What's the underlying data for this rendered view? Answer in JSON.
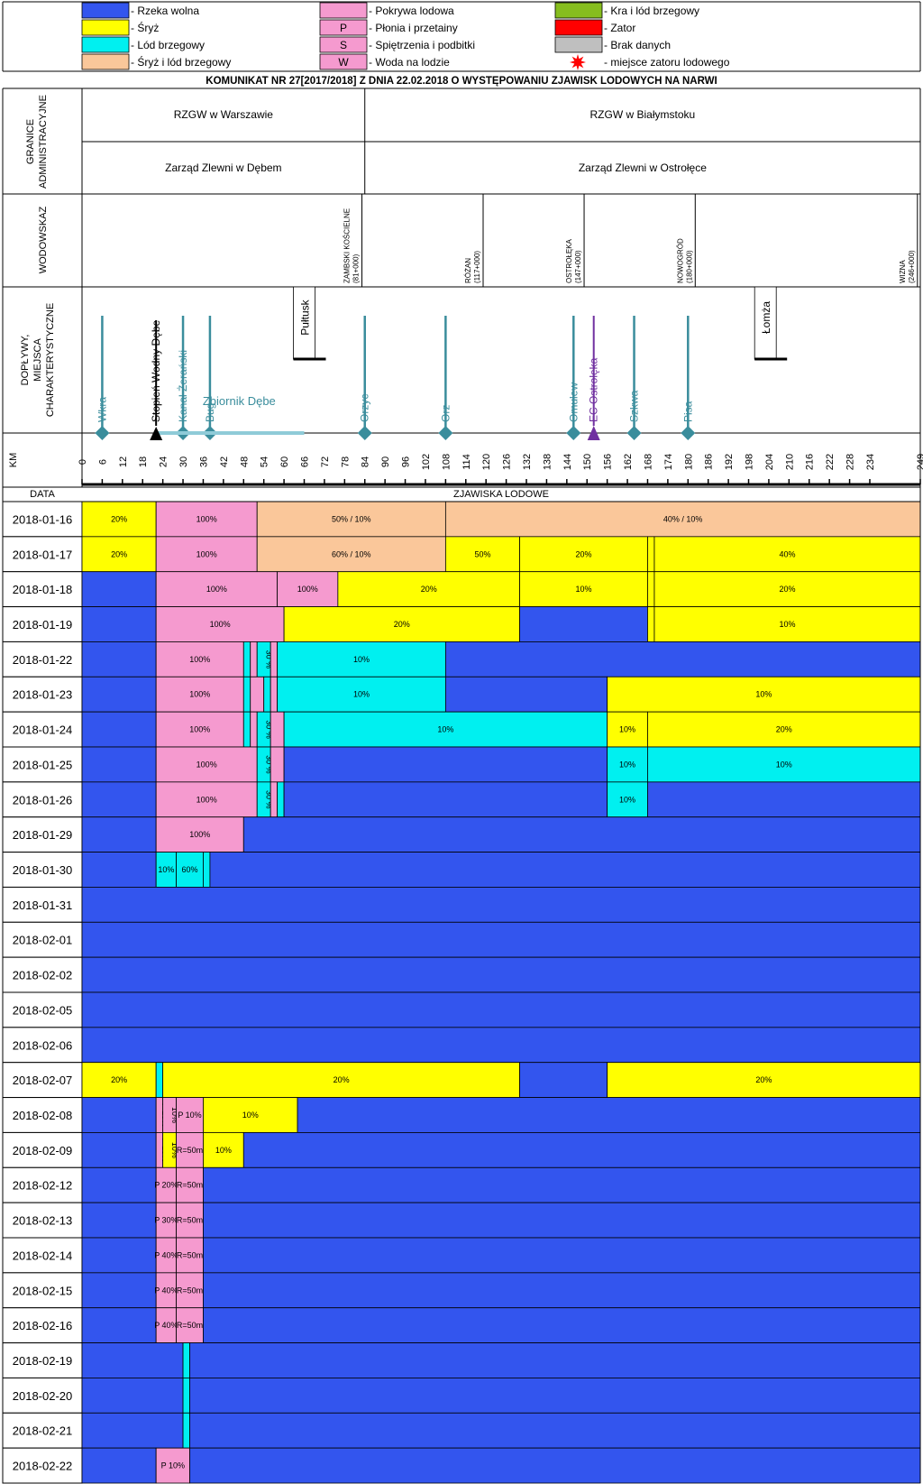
{
  "colors": {
    "free": "#3355ee",
    "sryz": "#ffff00",
    "brzeg": "#00f0f0",
    "sryzbrzeg": "#fac79a",
    "pokrywa": "#f59acf",
    "kra": "#86bd1e",
    "zator": "#ff0000",
    "brak": "#bfbfbf",
    "river_line": "#3a8d9c",
    "ec_line": "#7030a0",
    "reservoir": "#8fcbd8"
  },
  "legend": [
    {
      "key": "free",
      "label": "- Rzeka wolna"
    },
    {
      "key": "sryz",
      "label": "- Śryż"
    },
    {
      "key": "brzeg",
      "label": "- Lód brzegowy"
    },
    {
      "key": "sryzbrzeg",
      "label": "- Śryż i lód brzegowy"
    },
    {
      "key": "pokrywa",
      "label": "- Pokrywa lodowa"
    },
    {
      "key": "pokrywa",
      "sym": "P",
      "label": "- Płonia i przetainy"
    },
    {
      "key": "pokrywa",
      "sym": "S",
      "label": "- Spiętrzenia i podbitki"
    },
    {
      "key": "pokrywa",
      "sym": "W",
      "label": "- Woda na lodzie"
    },
    {
      "key": "kra",
      "label": "- Kra i lód brzegowy"
    },
    {
      "key": "zator",
      "label": "- Zator"
    },
    {
      "key": "brak",
      "label": "- Brak danych"
    },
    {
      "key": "star",
      "label": "- miejsce zatoru lodowego"
    }
  ],
  "title": "KOMUNIKAT NR 27[2017/2018] Z DNIA 22.02.2018 O WYSTĘPOWANIU ZJAWISK LODOWYCH NA NARWI",
  "labels": {
    "granice": [
      "GRANICE",
      "ADMINISTRACYJNE"
    ],
    "wodowskaz": "WODOWSKAZ",
    "doplywy": [
      "DOPŁYWY,",
      "MIEJSCA",
      "CHARAKTERYSTYCZNE"
    ],
    "km": "KM",
    "data": "DATA",
    "zjawiska": "ZJAWISKA LODOWE"
  },
  "admin": {
    "rzgw": [
      {
        "name": "RZGW w Warszawie",
        "from": 0,
        "to": 84
      },
      {
        "name": "RZGW w Białymstoku",
        "from": 84,
        "to": 249
      }
    ],
    "zarzad": [
      {
        "name": "Zarząd Zlewni w Dębem",
        "from": 0,
        "to": 84
      },
      {
        "name": "Zarząd Zlewni w Ostrołęce",
        "from": 84,
        "to": 249
      }
    ]
  },
  "gauges": [
    {
      "name": "ZAMBSKI KOŚCIELNE",
      "km_label": "(81+000)",
      "km": 81
    },
    {
      "name": "RÓŻAN",
      "km_label": "(117+000)",
      "km": 117
    },
    {
      "name": "OSTROŁĘKA",
      "km_label": "(147+000)",
      "km": 147
    },
    {
      "name": "NOWOGRÓD",
      "km_label": "(180+000)",
      "km": 180
    },
    {
      "name": "WIZNA",
      "km_label": "(246+000)",
      "km": 246
    }
  ],
  "tributaries": [
    {
      "name": "Wkra",
      "km": 6,
      "kind": "river"
    },
    {
      "name": "Kanał Żerański",
      "km": 30,
      "kind": "river"
    },
    {
      "name": "Bug",
      "km": 38,
      "kind": "river"
    },
    {
      "name": "Orzyc",
      "km": 84,
      "kind": "river"
    },
    {
      "name": "Orz",
      "km": 108,
      "kind": "river"
    },
    {
      "name": "Omulew",
      "km": 146,
      "kind": "river"
    },
    {
      "name": "Szkwa",
      "km": 164,
      "kind": "river"
    },
    {
      "name": "Pisa",
      "km": 180,
      "kind": "river"
    }
  ],
  "special": {
    "dam": {
      "name": "Stopień Wodny Dębe",
      "km": 22
    },
    "ec": {
      "name": "EC Ostrołęka",
      "km": 152
    },
    "reservoir": {
      "name": "Zbiornik Dębe",
      "from": 22,
      "to": 66
    },
    "towns": [
      {
        "name": "Pułtusk",
        "km": 66
      },
      {
        "name": "Łomża",
        "km": 203
      }
    ]
  },
  "km_ticks": [
    "0",
    "6",
    "12",
    "18",
    "24",
    "30",
    "36",
    "42",
    "48",
    "54",
    "60",
    "66",
    "72",
    "78",
    "84",
    "90",
    "96",
    "102",
    "108",
    "114",
    "120",
    "126",
    "132",
    "138",
    "144",
    "150",
    "156",
    "162",
    "168",
    "174",
    "180",
    "186",
    "192",
    "198",
    "204",
    "210",
    "216",
    "222",
    "228",
    "234",
    "249"
  ],
  "chart_data": {
    "type": "table",
    "title": "KOMUNIKAT NR 27[2017/2018] Z DNIA 22.02.2018 O WYSTĘPOWANIU ZJAWISK LODOWYCH NA NARWI",
    "xlabel": "KM",
    "ylabel": "DATA",
    "xlim": [
      0,
      249
    ],
    "rows": [
      {
        "date": "2018-01-16",
        "segs": [
          [
            0,
            22,
            "sryz",
            "20%"
          ],
          [
            22,
            52,
            "pokrywa",
            "100%"
          ],
          [
            52,
            108,
            "sryzbrzeg",
            "50% / 10%"
          ],
          [
            108,
            249,
            "sryzbrzeg",
            "40% / 10%"
          ]
        ]
      },
      {
        "date": "2018-01-17",
        "segs": [
          [
            0,
            22,
            "sryz",
            "20%"
          ],
          [
            22,
            52,
            "pokrywa",
            "100%"
          ],
          [
            52,
            108,
            "sryzbrzeg",
            "60% / 10%"
          ],
          [
            108,
            130,
            "sryz",
            "50%"
          ],
          [
            130,
            168,
            "sryz",
            "20%"
          ],
          [
            168,
            170,
            "sryz",
            ""
          ],
          [
            170,
            249,
            "sryz",
            "40%"
          ]
        ]
      },
      {
        "date": "2018-01-18",
        "segs": [
          [
            0,
            22,
            "free",
            ""
          ],
          [
            22,
            58,
            "pokrywa",
            "100%"
          ],
          [
            58,
            76,
            "pokrywa",
            "100%"
          ],
          [
            76,
            130,
            "sryz",
            "20%"
          ],
          [
            130,
            168,
            "sryz",
            "10%"
          ],
          [
            168,
            170,
            "sryz",
            ""
          ],
          [
            170,
            249,
            "sryz",
            "20%"
          ]
        ]
      },
      {
        "date": "2018-01-19",
        "segs": [
          [
            0,
            22,
            "free",
            ""
          ],
          [
            22,
            60,
            "pokrywa",
            "100%"
          ],
          [
            60,
            130,
            "sryz",
            "20%"
          ],
          [
            130,
            168,
            "free",
            ""
          ],
          [
            168,
            170,
            "sryz",
            ""
          ],
          [
            170,
            249,
            "sryz",
            "10%"
          ]
        ]
      },
      {
        "date": "2018-01-22",
        "segs": [
          [
            0,
            22,
            "free",
            ""
          ],
          [
            22,
            48,
            "pokrywa",
            "100%"
          ],
          [
            48,
            50,
            "brzeg",
            ""
          ],
          [
            50,
            52,
            "pokrywa",
            ""
          ],
          [
            52,
            56,
            "brzeg",
            "30 %"
          ],
          [
            56,
            58,
            "pokrywa",
            ""
          ],
          [
            58,
            108,
            "brzeg",
            "10%"
          ],
          [
            108,
            249,
            "free",
            ""
          ]
        ]
      },
      {
        "date": "2018-01-23",
        "segs": [
          [
            0,
            22,
            "free",
            ""
          ],
          [
            22,
            48,
            "pokrywa",
            "100%"
          ],
          [
            48,
            50,
            "brzeg",
            ""
          ],
          [
            50,
            54,
            "pokrywa",
            ""
          ],
          [
            54,
            56,
            "brzeg",
            ""
          ],
          [
            56,
            58,
            "pokrywa",
            ""
          ],
          [
            58,
            108,
            "brzeg",
            "10%"
          ],
          [
            108,
            156,
            "free",
            ""
          ],
          [
            156,
            249,
            "sryz",
            "10%"
          ]
        ]
      },
      {
        "date": "2018-01-24",
        "segs": [
          [
            0,
            22,
            "free",
            ""
          ],
          [
            22,
            48,
            "pokrywa",
            "100%"
          ],
          [
            48,
            50,
            "brzeg",
            ""
          ],
          [
            50,
            52,
            "pokrywa",
            ""
          ],
          [
            52,
            56,
            "brzeg",
            "30 %"
          ],
          [
            56,
            60,
            "pokrywa",
            ""
          ],
          [
            60,
            156,
            "brzeg",
            "10%"
          ],
          [
            156,
            168,
            "sryz",
            "10%"
          ],
          [
            168,
            249,
            "sryz",
            "20%"
          ]
        ]
      },
      {
        "date": "2018-01-25",
        "segs": [
          [
            0,
            22,
            "free",
            ""
          ],
          [
            22,
            52,
            "pokrywa",
            "100%"
          ],
          [
            52,
            56,
            "brzeg",
            "30 %"
          ],
          [
            56,
            60,
            "pokrywa",
            ""
          ],
          [
            60,
            156,
            "free",
            ""
          ],
          [
            156,
            168,
            "brzeg",
            "10%"
          ],
          [
            168,
            249,
            "brzeg",
            "10%"
          ]
        ]
      },
      {
        "date": "2018-01-26",
        "segs": [
          [
            0,
            22,
            "free",
            ""
          ],
          [
            22,
            52,
            "pokrywa",
            "100%"
          ],
          [
            52,
            56,
            "brzeg",
            "30 %"
          ],
          [
            56,
            58,
            "pokrywa",
            ""
          ],
          [
            58,
            60,
            "brzeg",
            ""
          ],
          [
            60,
            156,
            "free",
            ""
          ],
          [
            156,
            168,
            "brzeg",
            "10%"
          ],
          [
            168,
            249,
            "free",
            ""
          ]
        ]
      },
      {
        "date": "2018-01-29",
        "segs": [
          [
            0,
            22,
            "free",
            ""
          ],
          [
            22,
            48,
            "pokrywa",
            "100%"
          ],
          [
            48,
            249,
            "free",
            ""
          ]
        ]
      },
      {
        "date": "2018-01-30",
        "segs": [
          [
            0,
            22,
            "free",
            ""
          ],
          [
            22,
            28,
            "brzeg",
            "10%"
          ],
          [
            28,
            36,
            "brzeg",
            "60%"
          ],
          [
            36,
            38,
            "brzeg",
            ""
          ],
          [
            38,
            249,
            "free",
            ""
          ]
        ]
      },
      {
        "date": "2018-01-31",
        "segs": [
          [
            0,
            249,
            "free",
            ""
          ]
        ]
      },
      {
        "date": "2018-02-01",
        "segs": [
          [
            0,
            249,
            "free",
            ""
          ]
        ]
      },
      {
        "date": "2018-02-02",
        "segs": [
          [
            0,
            249,
            "free",
            ""
          ]
        ]
      },
      {
        "date": "2018-02-05",
        "segs": [
          [
            0,
            249,
            "free",
            ""
          ]
        ]
      },
      {
        "date": "2018-02-06",
        "segs": [
          [
            0,
            249,
            "free",
            ""
          ]
        ]
      },
      {
        "date": "2018-02-07",
        "segs": [
          [
            0,
            22,
            "sryz",
            "20%"
          ],
          [
            22,
            24,
            "brzeg",
            ""
          ],
          [
            24,
            130,
            "sryz",
            "20%"
          ],
          [
            130,
            156,
            "free",
            ""
          ],
          [
            156,
            249,
            "sryz",
            "20%"
          ]
        ]
      },
      {
        "date": "2018-02-08",
        "segs": [
          [
            0,
            22,
            "free",
            ""
          ],
          [
            22,
            24,
            "pokrywa",
            "P 10%"
          ],
          [
            24,
            28,
            "pokrywa",
            "10%"
          ],
          [
            28,
            36,
            "pokrywa",
            "P 10%"
          ],
          [
            36,
            64,
            "sryz",
            "10%"
          ],
          [
            64,
            249,
            "free",
            ""
          ]
        ]
      },
      {
        "date": "2018-02-09",
        "segs": [
          [
            0,
            22,
            "free",
            ""
          ],
          [
            22,
            24,
            "pokrywa",
            "P 10%"
          ],
          [
            24,
            28,
            "sryz",
            "10%"
          ],
          [
            28,
            36,
            "pokrywa",
            "R=50m"
          ],
          [
            36,
            48,
            "sryz",
            "10%"
          ],
          [
            48,
            249,
            "free",
            ""
          ]
        ]
      },
      {
        "date": "2018-02-12",
        "segs": [
          [
            0,
            22,
            "free",
            ""
          ],
          [
            22,
            28,
            "pokrywa",
            "P 20%"
          ],
          [
            28,
            36,
            "pokrywa",
            "R=50m"
          ],
          [
            36,
            249,
            "free",
            ""
          ]
        ]
      },
      {
        "date": "2018-02-13",
        "segs": [
          [
            0,
            22,
            "free",
            ""
          ],
          [
            22,
            28,
            "pokrywa",
            "P 30%"
          ],
          [
            28,
            36,
            "pokrywa",
            "R=50m"
          ],
          [
            36,
            249,
            "free",
            ""
          ]
        ]
      },
      {
        "date": "2018-02-14",
        "segs": [
          [
            0,
            22,
            "free",
            ""
          ],
          [
            22,
            28,
            "pokrywa",
            "P 40%"
          ],
          [
            28,
            36,
            "pokrywa",
            "R=50m"
          ],
          [
            36,
            249,
            "free",
            ""
          ]
        ]
      },
      {
        "date": "2018-02-15",
        "segs": [
          [
            0,
            22,
            "free",
            ""
          ],
          [
            22,
            28,
            "pokrywa",
            "P 40%"
          ],
          [
            28,
            36,
            "pokrywa",
            "R=50m"
          ],
          [
            36,
            249,
            "free",
            ""
          ]
        ]
      },
      {
        "date": "2018-02-16",
        "segs": [
          [
            0,
            22,
            "free",
            ""
          ],
          [
            22,
            28,
            "pokrywa",
            "P 40%"
          ],
          [
            28,
            36,
            "pokrywa",
            "R=50m"
          ],
          [
            36,
            249,
            "free",
            ""
          ]
        ]
      },
      {
        "date": "2018-02-19",
        "segs": [
          [
            0,
            30,
            "free",
            ""
          ],
          [
            30,
            32,
            "brzeg",
            ""
          ],
          [
            32,
            249,
            "free",
            ""
          ]
        ]
      },
      {
        "date": "2018-02-20",
        "segs": [
          [
            0,
            30,
            "free",
            ""
          ],
          [
            30,
            32,
            "brzeg",
            ""
          ],
          [
            32,
            249,
            "free",
            ""
          ]
        ]
      },
      {
        "date": "2018-02-21",
        "segs": [
          [
            0,
            30,
            "free",
            ""
          ],
          [
            30,
            32,
            "brzeg",
            ""
          ],
          [
            32,
            249,
            "free",
            ""
          ]
        ]
      },
      {
        "date": "2018-02-22",
        "segs": [
          [
            0,
            22,
            "free",
            ""
          ],
          [
            22,
            32,
            "pokrywa",
            "P 10%"
          ],
          [
            32,
            249,
            "free",
            ""
          ]
        ]
      }
    ]
  }
}
